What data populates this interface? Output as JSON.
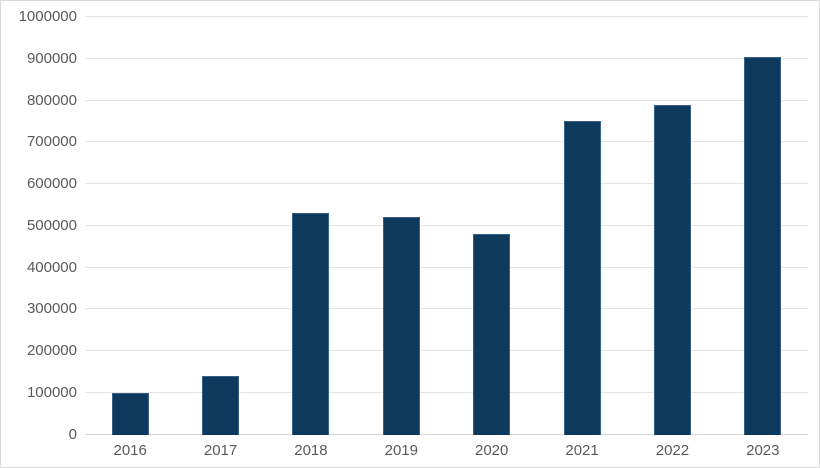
{
  "chart_data": {
    "type": "bar",
    "title": "",
    "categories": [
      "2016",
      "2017",
      "2018",
      "2019",
      "2020",
      "2021",
      "2022",
      "2023"
    ],
    "values": [
      100000,
      140000,
      530000,
      520000,
      480000,
      750000,
      790000,
      905000
    ],
    "xlabel": "",
    "ylabel": "",
    "ylim": [
      0,
      1000000
    ],
    "y_tick_values": [
      0,
      100000,
      200000,
      300000,
      400000,
      500000,
      600000,
      700000,
      800000,
      900000,
      1000000
    ],
    "y_tick_labels": [
      "0",
      "100000",
      "200000",
      "300000",
      "400000",
      "500000",
      "600000",
      "700000",
      "800000",
      "900000",
      "1000000"
    ],
    "grid": "horizontal",
    "legend": "none",
    "colors": {
      "bar_fill": "#0d3a5c",
      "bar_border": "#35608a",
      "gridline": "#e4e4e4",
      "axis_line": "#d6d6d6",
      "tick_label": "#595959",
      "chart_border": "#d9d9d9",
      "background": "#ffffff"
    }
  }
}
